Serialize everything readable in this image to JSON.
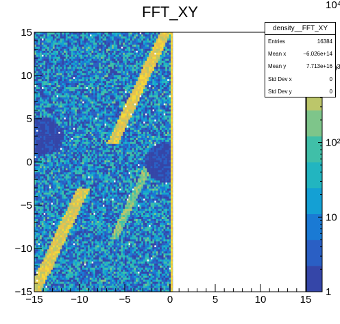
{
  "chart_data": {
    "type": "heatmap",
    "title": "FFT_XY",
    "xlabel": "",
    "ylabel": "",
    "xlim": [
      -15,
      15
    ],
    "ylim": [
      -15,
      15
    ],
    "x_ticks": [
      "−15",
      "−10",
      "−5",
      "0",
      "5",
      "10",
      "15"
    ],
    "y_ticks": [
      "−15",
      "−10",
      "−5",
      "0",
      "5",
      "10",
      "15"
    ],
    "x_tick_values": [
      -15,
      -10,
      -5,
      0,
      5,
      10,
      15
    ],
    "y_tick_values": [
      -15,
      -10,
      -5,
      0,
      5,
      10,
      15
    ],
    "filled_x_range": [
      -15,
      0.3
    ],
    "color_scale": "log",
    "z_range": [
      1,
      3000
    ],
    "colorbar_ticks": [
      "1",
      "10",
      "10²",
      "10³",
      "10⁴"
    ],
    "colorbar_tick_values": [
      1,
      10,
      100,
      1000,
      10000
    ],
    "palette": [
      "#3546a8",
      "#2a5fc4",
      "#1a7ad4",
      "#14a0d4",
      "#22b5c0",
      "#40bfa8",
      "#7ec58a",
      "#bcc66a",
      "#e6c24e",
      "#f5d838"
    ],
    "frame_color": "#000000",
    "background_color": "#ffffff"
  },
  "stats_box": {
    "title": "density__FFT_XY",
    "rows": [
      {
        "label": "Entries",
        "value": "16384"
      },
      {
        "label": "Mean x",
        "value": "−6.026e+14"
      },
      {
        "label": "Mean y",
        "value": "7.713e+16"
      },
      {
        "label": "Std Dev x",
        "value": "0"
      },
      {
        "label": "Std Dev y",
        "value": "0"
      }
    ]
  }
}
